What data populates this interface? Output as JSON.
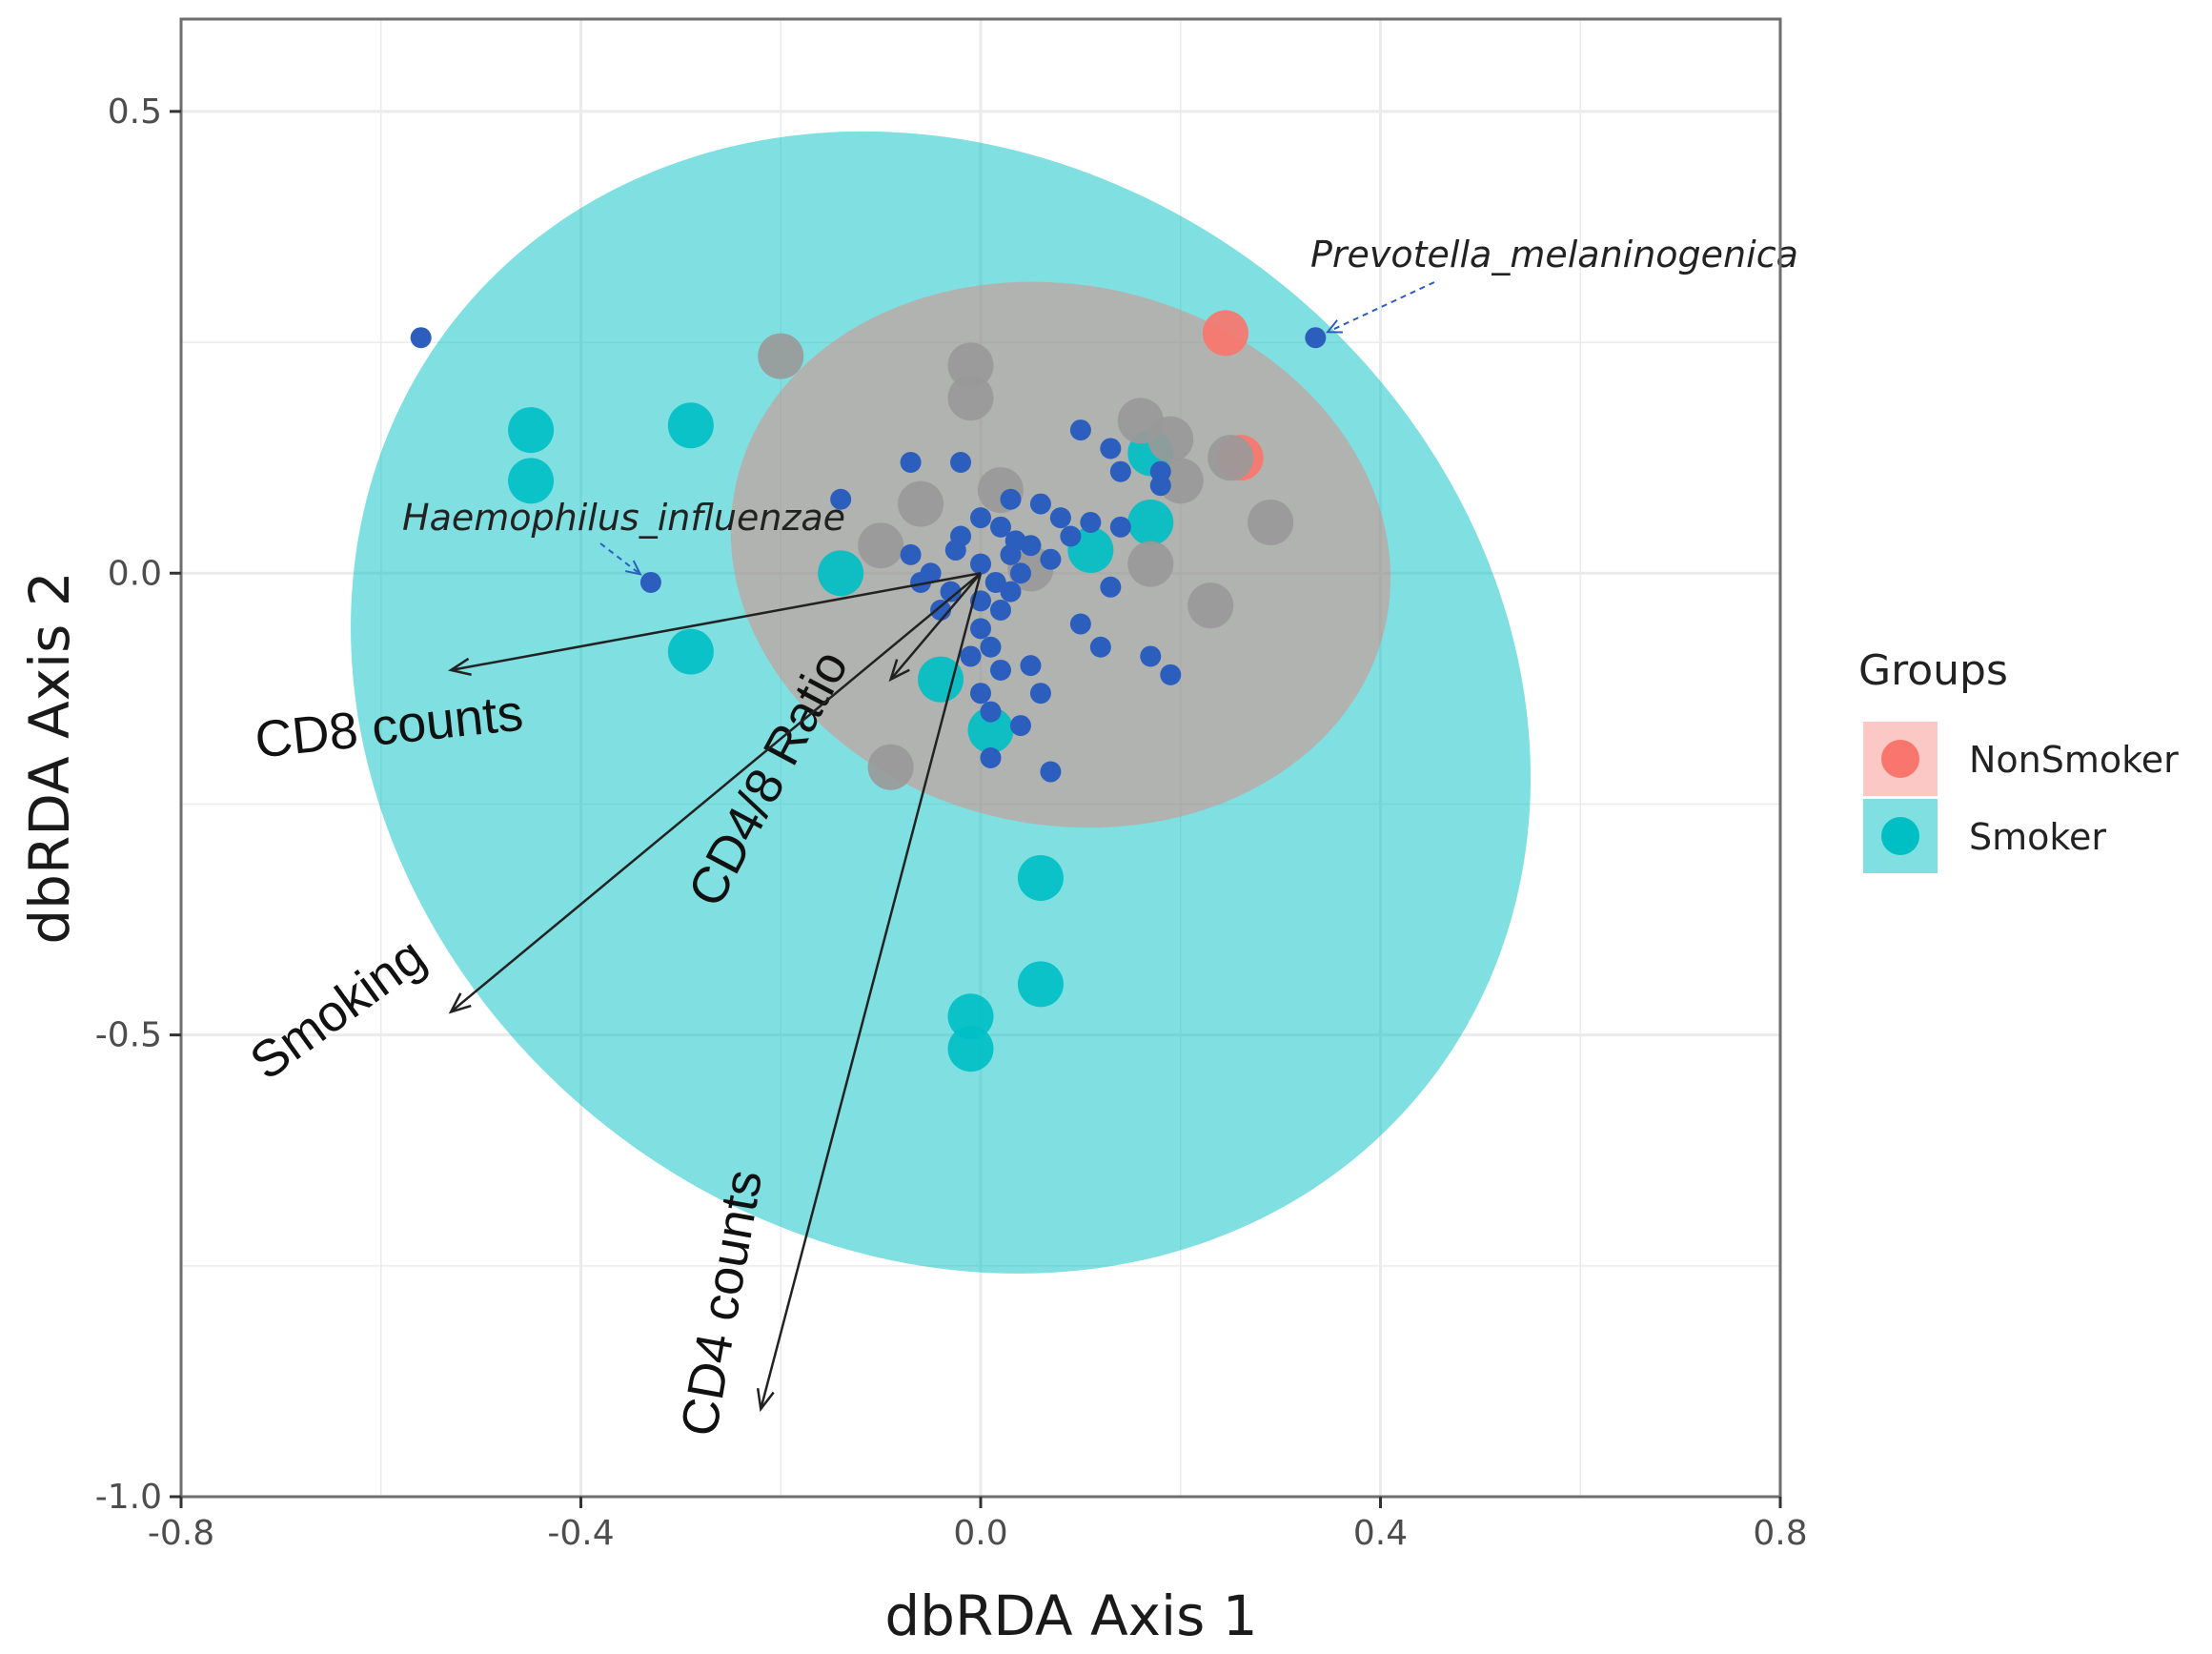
{
  "chart_data": {
    "type": "scatter",
    "xlabel": "dbRDA Axis 1",
    "ylabel": "dbRDA Axis 2",
    "xlim": [
      -0.8,
      0.8
    ],
    "ylim": [
      -1.0,
      0.6
    ],
    "x_ticks": [
      -0.8,
      -0.4,
      0.0,
      0.4,
      0.8
    ],
    "x_tick_labels": [
      "-0.8",
      "-0.4",
      "0.0",
      "0.4",
      "0.8"
    ],
    "y_ticks": [
      -1.0,
      -0.5,
      0.0,
      0.5
    ],
    "y_tick_labels": [
      "-1.0",
      "-0.5",
      "0.0",
      "0.5"
    ],
    "grid": true,
    "legend": {
      "title": "Groups",
      "position": "right",
      "entries": [
        {
          "label": "NonSmoker",
          "color": "#f8766d"
        },
        {
          "label": "Smoker",
          "color": "#00bfc4"
        }
      ]
    },
    "ellipses": [
      {
        "group": "Smoker",
        "cx": -0.04,
        "cy": -0.14,
        "rx": 0.54,
        "ry": 0.67,
        "angle_deg": 52,
        "color": "#00bfc4"
      },
      {
        "group": "NonSmoker",
        "cx": 0.08,
        "cy": 0.02,
        "rx": 0.27,
        "ry": 0.36,
        "angle_deg": 78,
        "color": "#f8766d"
      }
    ],
    "series": [
      {
        "name": "Smoker samples",
        "color": "#00bfc4",
        "points": [
          [
            -0.45,
            0.155
          ],
          [
            -0.45,
            0.1
          ],
          [
            -0.29,
            0.16
          ],
          [
            -0.29,
            -0.085
          ],
          [
            -0.14,
            0.0
          ],
          [
            -0.04,
            -0.115
          ],
          [
            0.01,
            -0.17
          ],
          [
            0.06,
            -0.33
          ],
          [
            0.06,
            -0.445
          ],
          [
            -0.01,
            -0.48
          ],
          [
            -0.01,
            -0.515
          ],
          [
            0.17,
            0.13
          ],
          [
            0.17,
            0.055
          ],
          [
            0.11,
            0.025
          ]
        ]
      },
      {
        "name": "NonSmoker samples",
        "color": "#f8766d",
        "points": [
          [
            0.245,
            0.26
          ],
          [
            0.26,
            0.125
          ]
        ]
      },
      {
        "name": "Overlap samples",
        "color": "#999999",
        "points": [
          [
            -0.2,
            0.235
          ],
          [
            -0.01,
            0.225
          ],
          [
            -0.01,
            0.19
          ],
          [
            -0.1,
            0.03
          ],
          [
            -0.06,
            0.075
          ],
          [
            0.02,
            0.09
          ],
          [
            0.16,
            0.165
          ],
          [
            0.19,
            0.145
          ],
          [
            0.2,
            0.1
          ],
          [
            0.29,
            0.055
          ],
          [
            0.25,
            0.125
          ],
          [
            0.17,
            0.01
          ],
          [
            0.23,
            -0.035
          ],
          [
            -0.09,
            -0.21
          ],
          [
            0.05,
            0.005
          ]
        ]
      },
      {
        "name": "Taxa",
        "color": "#2c5fbd",
        "points": [
          [
            -0.56,
            0.255
          ],
          [
            -0.33,
            -0.01
          ],
          [
            0.335,
            0.255
          ],
          [
            -0.14,
            0.08
          ],
          [
            -0.07,
            0.12
          ],
          [
            -0.02,
            0.12
          ],
          [
            0.1,
            0.155
          ],
          [
            0.13,
            0.135
          ],
          [
            0.14,
            0.11
          ],
          [
            0.18,
            0.11
          ],
          [
            0.18,
            0.095
          ],
          [
            0.11,
            0.055
          ],
          [
            0.14,
            0.05
          ],
          [
            0.03,
            0.08
          ],
          [
            0.06,
            0.075
          ],
          [
            0.08,
            0.06
          ],
          [
            0.09,
            0.04
          ],
          [
            0.07,
            0.015
          ],
          [
            0.13,
            -0.015
          ],
          [
            0.1,
            -0.055
          ],
          [
            0.12,
            -0.08
          ],
          [
            0.17,
            -0.09
          ],
          [
            0.19,
            -0.11
          ],
          [
            0.05,
            -0.1
          ],
          [
            0.06,
            -0.13
          ],
          [
            0.0,
            -0.13
          ],
          [
            0.01,
            -0.15
          ],
          [
            0.04,
            -0.165
          ],
          [
            0.07,
            -0.215
          ],
          [
            0.01,
            -0.2
          ],
          [
            0.0,
            -0.06
          ],
          [
            0.02,
            -0.04
          ],
          [
            0.03,
            -0.02
          ],
          [
            -0.03,
            -0.02
          ],
          [
            -0.05,
            0.0
          ],
          [
            -0.07,
            0.02
          ],
          [
            -0.02,
            0.04
          ],
          [
            0.0,
            0.06
          ],
          [
            0.04,
            0.0
          ],
          [
            0.03,
            0.02
          ],
          [
            -0.04,
            -0.04
          ],
          [
            -0.06,
            -0.01
          ],
          [
            0.05,
            0.03
          ],
          [
            0.02,
            0.05
          ],
          [
            0.01,
            -0.08
          ],
          [
            0.02,
            -0.105
          ],
          [
            -0.01,
            -0.09
          ],
          [
            0.0,
            0.01
          ],
          [
            0.035,
            0.035
          ],
          [
            -0.025,
            0.025
          ],
          [
            0.0,
            -0.03
          ],
          [
            0.015,
            -0.01
          ]
        ]
      }
    ],
    "vectors": [
      {
        "label": "CD8 counts",
        "x": -0.53,
        "y": -0.105
      },
      {
        "label": "CD4/8 Ratio",
        "x": -0.09,
        "y": -0.115
      },
      {
        "label": "Smoking",
        "x": -0.53,
        "y": -0.475
      },
      {
        "label": "CD4 counts",
        "x": -0.22,
        "y": -0.905
      }
    ],
    "annotations": [
      {
        "text": "Prevotella_melaninogenica",
        "target": [
          0.335,
          0.255
        ]
      },
      {
        "text": "Haemophilus_influenzae",
        "target": [
          -0.33,
          -0.01
        ]
      }
    ]
  }
}
